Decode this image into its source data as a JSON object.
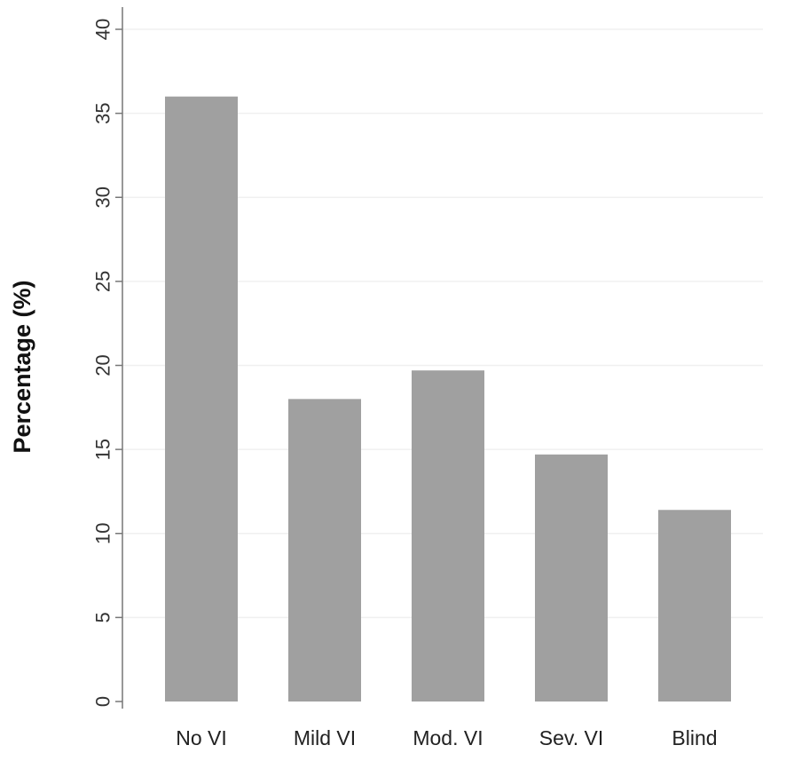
{
  "chart_data": {
    "type": "bar",
    "categories": [
      "No VI",
      "Mild VI",
      "Mod. VI",
      "Sev. VI",
      "Blind"
    ],
    "values": [
      36,
      18,
      19.7,
      14.7,
      11.4
    ],
    "ylabel": "Percentage (%)",
    "ylim": [
      0,
      40
    ],
    "yticks": [
      "0",
      "5",
      "10",
      "15",
      "20",
      "25",
      "30",
      "35",
      "40"
    ],
    "grid": true,
    "bar_color": "#a0a0a0",
    "grid_color": "#f0f0f0",
    "axis_color": "#777777"
  }
}
